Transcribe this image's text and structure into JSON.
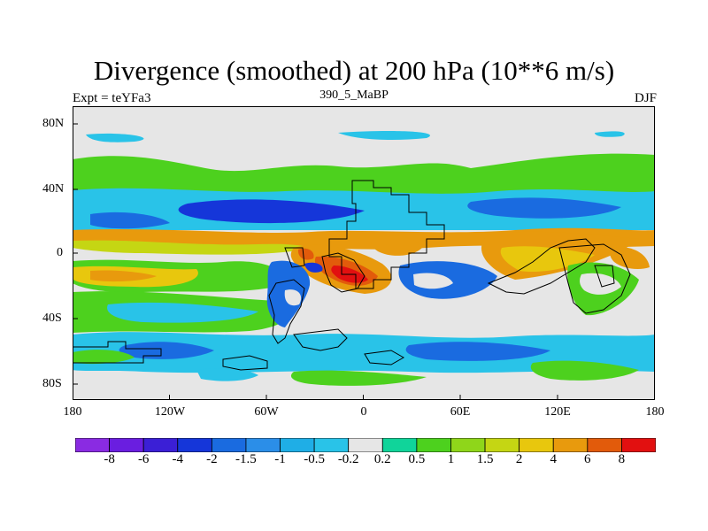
{
  "title": "Divergence (smoothed) at 200 hPa (10**6 m/s)",
  "left_label": "Expt = teYFa3",
  "center_label": "390_5_MaBP",
  "right_label": "DJF",
  "y_ticks": [
    "80N",
    "40N",
    "0",
    "40S",
    "80S"
  ],
  "x_ticks": [
    "180",
    "120W",
    "60W",
    "0",
    "60E",
    "120E",
    "180"
  ],
  "colorbar": {
    "labels": [
      "-8",
      "-6",
      "-4",
      "-2",
      "-1.5",
      "-1",
      "-0.5",
      "-0.2",
      "0.2",
      "0.5",
      "1",
      "1.5",
      "2",
      "4",
      "6",
      "8"
    ],
    "colors": [
      "#8a2be2",
      "#6a1ee0",
      "#3b1fd6",
      "#1536d9",
      "#1a6be0",
      "#2b8ee8",
      "#1faee6",
      "#29c3e8",
      "#e6e6e6",
      "#10d49a",
      "#4dd11e",
      "#8fd61a",
      "#c5d613",
      "#e8c70d",
      "#e89a0d",
      "#e25b0b",
      "#e21010"
    ]
  },
  "palette": {
    "neutral": "#e6e6e6",
    "light_blue": "#29c3e8",
    "blue": "#1a6be0",
    "dark_blue": "#1536d9",
    "green": "#4dd11e",
    "yellow_green": "#8fd61a",
    "orange": "#e89a0d",
    "red": "#e21010"
  }
}
